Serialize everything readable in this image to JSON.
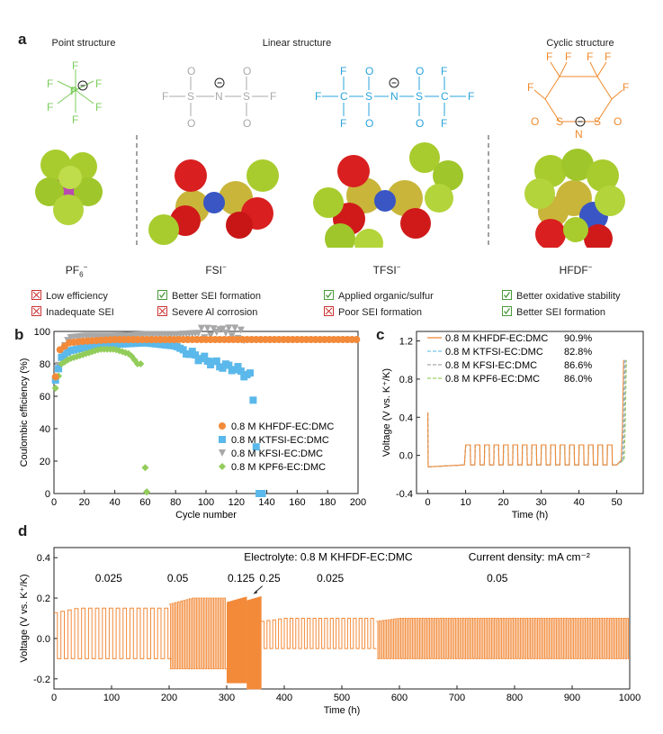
{
  "panel_a": {
    "label": "a",
    "headers": {
      "point": "Point structure",
      "linear": "Linear structure",
      "cyclic": "Cyclic structure"
    },
    "anions": [
      {
        "name": "PF",
        "sub": "6",
        "sup": "−",
        "notes": [
          {
            "text": "Low efficiency",
            "ok": false
          },
          {
            "text": "Inadequate SEI",
            "ok": false
          }
        ]
      },
      {
        "name": "FSI",
        "sub": "",
        "sup": "−",
        "notes": [
          {
            "text": "Better SEI formation",
            "ok": true
          },
          {
            "text": "Severe Al corrosion",
            "ok": false
          }
        ]
      },
      {
        "name": "TFSI",
        "sub": "",
        "sup": "−",
        "notes": [
          {
            "text": "Applied organic/sulfur",
            "ok": true
          },
          {
            "text": "Poor SEI formation",
            "ok": false
          }
        ]
      },
      {
        "name": "HFDF",
        "sub": "",
        "sup": "−",
        "notes": [
          {
            "text": "Better oxidative stability",
            "ok": true
          },
          {
            "text": "Better SEI formation",
            "ok": true
          }
        ]
      }
    ],
    "colors": {
      "pf6": "#7ccd5c",
      "fsi": "#a9a9a9",
      "tfsi": "#2aa3dc",
      "hfdf": "#f08a2c"
    }
  },
  "chart_data": [
    {
      "panel": "b",
      "type": "scatter",
      "xlabel": "Cycle number",
      "ylabel": "Coulombic efficiency (%)",
      "xlim": [
        0,
        200
      ],
      "ylim": [
        0,
        100
      ],
      "xticks": [
        0,
        20,
        40,
        60,
        80,
        100,
        120,
        140,
        160,
        180,
        200
      ],
      "yticks": [
        0,
        20,
        40,
        60,
        80,
        100
      ],
      "legend_position": "right",
      "series": [
        {
          "name": "0.8 M KHFDF-EC:DMC",
          "marker": "circle",
          "color": "#f28a3a",
          "x": [
            1,
            3,
            10,
            20,
            40,
            60,
            80,
            100,
            120,
            140,
            160,
            180,
            200
          ],
          "y": [
            72,
            88,
            93,
            94,
            95,
            95,
            95,
            95,
            95,
            95,
            95,
            95,
            95
          ]
        },
        {
          "name": "0.8 M KTFSI-EC:DMC",
          "marker": "square",
          "color": "#5bb8ea",
          "x": [
            1,
            5,
            10,
            20,
            40,
            60,
            80,
            95,
            110,
            120,
            125,
            130,
            135,
            137
          ],
          "y": [
            70,
            84,
            88,
            90,
            92,
            93,
            91,
            84,
            79,
            77,
            74,
            72,
            0,
            0
          ]
        },
        {
          "name": "0.8 M KFSI-EC:DMC",
          "marker": "triangle-down",
          "color": "#a8a8a8",
          "x": [
            1,
            5,
            10,
            20,
            40,
            60,
            80,
            100,
            110,
            120,
            125
          ],
          "y": [
            70,
            88,
            96,
            97,
            97,
            98,
            98,
            99,
            101,
            99,
            97
          ]
        },
        {
          "name": "0.8 M KPF6-EC:DMC",
          "marker": "diamond",
          "color": "#92cc5a",
          "x": [
            1,
            5,
            10,
            20,
            30,
            40,
            50,
            55,
            58,
            60,
            61
          ],
          "y": [
            65,
            80,
            83,
            86,
            89,
            89,
            86,
            80,
            80,
            16,
            1
          ]
        }
      ]
    },
    {
      "panel": "c",
      "type": "line",
      "xlabel": "Time (h)",
      "ylabel": "Voltage (V vs. K⁺/K)",
      "xlim": [
        -3,
        57
      ],
      "ylim": [
        -0.4,
        1.3
      ],
      "xticks": [
        0,
        10,
        20,
        30,
        40,
        50
      ],
      "yticks": [
        -0.4,
        0.0,
        0.4,
        0.8,
        1.2
      ],
      "legend_position": "top",
      "series": [
        {
          "name": "0.8 M KHFDF-EC:DMC",
          "value": "90.9%",
          "color": "#f28a3a"
        },
        {
          "name": "0.8 M KTFSI-EC:DMC",
          "value": "82.8%",
          "color": "#73c3e8"
        },
        {
          "name": "0.8 M KFSI-EC:DMC",
          "value": "86.6%",
          "color": "#a8a8a8"
        },
        {
          "name": "0.8 M KPF6-EC:DMC",
          "value": "86.0%",
          "color": "#9ccf62"
        }
      ],
      "cycling": {
        "initial_low": -0.12,
        "step_start": 10,
        "step_end": 50,
        "high": 0.11,
        "low": -0.1,
        "period": 2.5,
        "end_rise": 1.0
      }
    },
    {
      "panel": "d",
      "type": "line",
      "xlabel": "Time (h)",
      "ylabel": "Voltage (V vs. K⁺/K)",
      "xlim": [
        0,
        1000
      ],
      "ylim": [
        -0.25,
        0.45
      ],
      "xticks": [
        0,
        100,
        200,
        300,
        400,
        500,
        600,
        700,
        800,
        900,
        1000
      ],
      "yticks": [
        -0.2,
        0.0,
        0.2,
        0.4
      ],
      "color": "#f28a3a",
      "annotations": {
        "electrolyte": "Electrolyte: 0.8 M KHFDF-EC:DMC",
        "current_density": "Current density: mA cm⁻²"
      },
      "segments": [
        {
          "label": "0.025",
          "start": 0,
          "end": 200,
          "period": 12,
          "high": 0.15,
          "low": -0.1
        },
        {
          "label": "0.05",
          "start": 200,
          "end": 300,
          "period": 5,
          "high": 0.2,
          "low": -0.15
        },
        {
          "label": "0.125",
          "start": 300,
          "end": 335,
          "period": 1,
          "high": 0.21,
          "low": -0.22
        },
        {
          "label": "0.25",
          "start": 335,
          "end": 360,
          "period": 0.6,
          "high": 0.22,
          "low": -0.25
        },
        {
          "label": "0.025",
          "start": 360,
          "end": 560,
          "period": 10,
          "high": 0.1,
          "low": -0.05
        },
        {
          "label": "0.05",
          "start": 560,
          "end": 1000,
          "period": 5,
          "high": 0.1,
          "low": -0.1
        }
      ]
    }
  ]
}
